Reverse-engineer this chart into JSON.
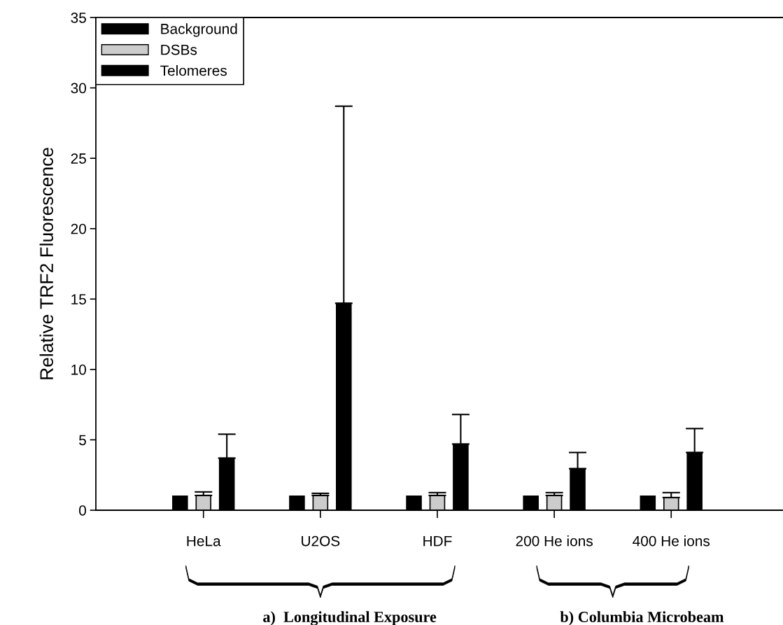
{
  "chart_data": {
    "type": "bar",
    "ylabel": "Relative TRF2 Fluorescence",
    "categories": [
      "HeLa",
      "U2OS",
      "HDF",
      "200 He ions",
      "400 He ions"
    ],
    "series": [
      {
        "name": "Background",
        "color": "#000000",
        "values": [
          1.0,
          1.0,
          1.0,
          1.0,
          1.0
        ]
      },
      {
        "name": "DSBs",
        "color": "#cccccc",
        "values": [
          1.05,
          1.05,
          1.05,
          1.05,
          0.9
        ],
        "errors": [
          [
            1.05,
            1.3
          ],
          [
            1.05,
            1.2
          ],
          [
            1.05,
            1.25
          ],
          [
            1.05,
            1.25
          ],
          [
            0.9,
            1.25
          ]
        ]
      },
      {
        "name": "Telomeres",
        "color": "#000000",
        "values": [
          3.7,
          14.7,
          4.7,
          2.95,
          4.1
        ],
        "errors": [
          [
            3.7,
            5.4
          ],
          [
            14.7,
            28.7
          ],
          [
            4.7,
            6.8
          ],
          [
            2.95,
            4.1
          ],
          [
            4.1,
            5.8
          ]
        ]
      }
    ],
    "ylim": [
      0,
      35
    ],
    "yticks": [
      0,
      5,
      10,
      15,
      20,
      25,
      30,
      35
    ],
    "grid": false,
    "legend": "top left",
    "annotations": [
      "a)  Longitudinal Exposure",
      "b) Columbia Microbeam"
    ]
  }
}
